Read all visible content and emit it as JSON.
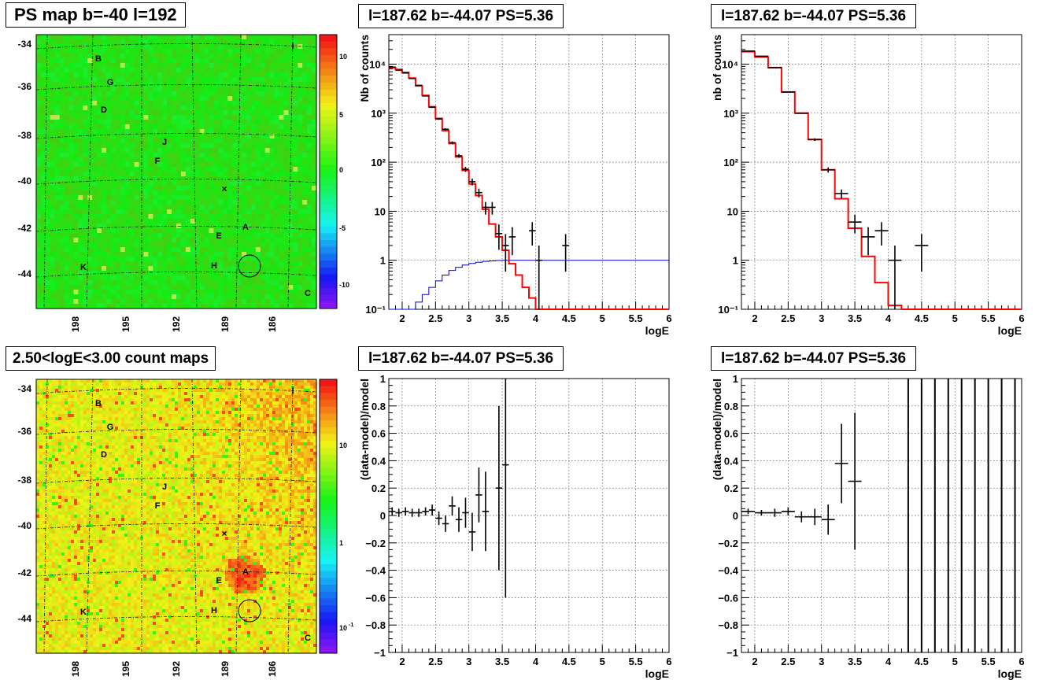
{
  "panels": {
    "top_left_title": "PS map b=-40 l=192",
    "bottom_left_title": "2.50<logE<3.00 count maps",
    "top_mid_title": "l=187.62 b=-44.07 PS=5.36",
    "top_right_title": "l=187.62 b=-44.07 PS=5.36",
    "bottom_mid_title": "l=187.62 b=-44.07 PS=5.36",
    "bottom_right_title": "l=187.62 b=-44.07 PS=5.36"
  },
  "maps": {
    "y_ticks": [
      "-34",
      "-36",
      "-38",
      "-40",
      "-42",
      "-44"
    ],
    "x_ticks": [
      "198",
      "195",
      "192",
      "189",
      "186"
    ],
    "sources": [
      "B",
      "G",
      "D",
      "J",
      "F",
      "E",
      "A",
      "H",
      "K",
      "C",
      "I"
    ],
    "ps_colorbar_ticks": [
      "10",
      "5",
      "0",
      "-5",
      "-10"
    ],
    "count_colorbar_ticks": [
      "10",
      "1",
      "10"
    ],
    "count_colorbar_exp": "-1"
  },
  "colors": {
    "model_line": "#ff0000",
    "exposure_line": "#0000cc",
    "data": "#000000",
    "ps_map_bg": "#3cf23c",
    "count_map_bg": "#bfe83a"
  },
  "chart_data": [
    {
      "type": "line",
      "id": "spectrum_left",
      "title": "l=187.62 b=-44.07 PS=5.36",
      "xlabel": "logE",
      "ylabel": "Nb of counts",
      "xlim": [
        1.8,
        6
      ],
      "ylim": [
        0.1,
        40000
      ],
      "log_y": true,
      "grid": true,
      "x_ticks": [
        2,
        2.5,
        3,
        3.5,
        4,
        4.5,
        5,
        5.5,
        6
      ],
      "x_tick_labels": [
        "2",
        "2.5",
        "3",
        "3.5",
        "4",
        "4.5",
        "5",
        "5.5",
        "6"
      ],
      "y_ticks": [
        0.1,
        1,
        10,
        100,
        1000,
        10000
      ],
      "y_tick_labels": [
        "10⁻¹",
        "1",
        "10",
        "10²",
        "10³",
        "10⁴"
      ],
      "model_edges": [
        1.8,
        1.9,
        2.0,
        2.1,
        2.2,
        2.3,
        2.4,
        2.5,
        2.6,
        2.7,
        2.8,
        2.9,
        3.0,
        3.1,
        3.2,
        3.3,
        3.4,
        3.5,
        3.6,
        3.7,
        3.8,
        3.9,
        4.0,
        4.1,
        6.0
      ],
      "model_values": [
        8500,
        7800,
        6800,
        5200,
        3600,
        2300,
        1350,
        780,
        440,
        240,
        128,
        68,
        36,
        21,
        11,
        5.5,
        3.0,
        1.6,
        0.85,
        0.5,
        0.28,
        0.17,
        0.1,
        0.07
      ],
      "exposure_edges": [
        1.8,
        2.1,
        2.2,
        2.3,
        2.4,
        2.5,
        2.6,
        2.7,
        2.8,
        2.9,
        3.0,
        3.1,
        3.2,
        3.3,
        3.4,
        3.5,
        6.0
      ],
      "exposure_values": [
        0.05,
        0.1,
        0.14,
        0.2,
        0.28,
        0.38,
        0.5,
        0.62,
        0.72,
        0.8,
        0.86,
        0.91,
        0.95,
        0.97,
        0.99,
        1.0
      ],
      "data_points": [
        {
          "x": 1.85,
          "y": 8700
        },
        {
          "x": 1.95,
          "y": 7500
        },
        {
          "x": 2.05,
          "y": 6600
        },
        {
          "x": 2.15,
          "y": 5100
        },
        {
          "x": 2.25,
          "y": 3700
        },
        {
          "x": 2.35,
          "y": 2250
        },
        {
          "x": 2.45,
          "y": 1320
        },
        {
          "x": 2.55,
          "y": 760
        },
        {
          "x": 2.65,
          "y": 470
        },
        {
          "x": 2.75,
          "y": 250
        },
        {
          "x": 2.85,
          "y": 135
        },
        {
          "x": 2.95,
          "y": 72
        },
        {
          "x": 3.05,
          "y": 40
        },
        {
          "x": 3.15,
          "y": 24
        },
        {
          "x": 3.25,
          "y": 12
        },
        {
          "x": 3.35,
          "y": 12
        },
        {
          "x": 3.45,
          "y": 3.5
        },
        {
          "x": 3.55,
          "y": 2
        },
        {
          "x": 3.65,
          "y": 3
        },
        {
          "x": 3.95,
          "y": 4
        },
        {
          "x": 4.05,
          "y": 1
        },
        {
          "x": 4.45,
          "y": 2
        }
      ]
    },
    {
      "type": "line",
      "id": "spectrum_right",
      "title": "l=187.62 b=-44.07 PS=5.36",
      "xlabel": "logE",
      "ylabel": "nb of counts",
      "xlim": [
        1.8,
        6
      ],
      "ylim": [
        0.1,
        40000
      ],
      "log_y": true,
      "grid": true,
      "x_ticks": [
        2,
        2.5,
        3,
        3.5,
        4,
        4.5,
        5,
        5.5,
        6
      ],
      "x_tick_labels": [
        "2",
        "2.5",
        "3",
        "3.5",
        "4",
        "4.5",
        "5",
        "5.5",
        "6"
      ],
      "y_ticks": [
        0.1,
        1,
        10,
        100,
        1000,
        10000
      ],
      "y_tick_labels": [
        "10⁻¹",
        "1",
        "10",
        "10²",
        "10³",
        "10⁴"
      ],
      "model_edges": [
        1.8,
        2.0,
        2.2,
        2.4,
        2.6,
        2.8,
        3.0,
        3.2,
        3.4,
        3.6,
        3.8,
        4.0,
        4.2,
        6.0
      ],
      "model_values": [
        18000,
        14000,
        8500,
        2700,
        1000,
        290,
        70,
        18,
        4.5,
        1.2,
        0.35,
        0.12,
        0.09
      ],
      "data_points": [
        {
          "x": 1.9,
          "y": 18500
        },
        {
          "x": 2.1,
          "y": 14500
        },
        {
          "x": 2.3,
          "y": 8500
        },
        {
          "x": 2.5,
          "y": 2700
        },
        {
          "x": 2.7,
          "y": 1000
        },
        {
          "x": 2.9,
          "y": 290
        },
        {
          "x": 3.1,
          "y": 70
        },
        {
          "x": 3.3,
          "y": 23
        },
        {
          "x": 3.5,
          "y": 6
        },
        {
          "x": 3.7,
          "y": 3
        },
        {
          "x": 3.9,
          "y": 4
        },
        {
          "x": 4.1,
          "y": 1
        },
        {
          "x": 4.5,
          "y": 2
        }
      ]
    },
    {
      "type": "scatter",
      "id": "residual_left",
      "title": "l=187.62 b=-44.07 PS=5.36",
      "xlabel": "logE",
      "ylabel": "(data-model)/model",
      "xlim": [
        1.8,
        6
      ],
      "ylim": [
        -1,
        1
      ],
      "grid": true,
      "x_ticks": [
        2,
        2.5,
        3,
        3.5,
        4,
        4.5,
        5,
        5.5,
        6
      ],
      "x_tick_labels": [
        "2",
        "2.5",
        "3",
        "3.5",
        "4",
        "4.5",
        "5",
        "5.5",
        "6"
      ],
      "y_ticks": [
        -1,
        -0.8,
        -0.6,
        -0.4,
        -0.2,
        0,
        0.2,
        0.4,
        0.6,
        0.8,
        1
      ],
      "y_tick_labels": [
        "−1",
        "−0.8",
        "−0.6",
        "−0.4",
        "−0.2",
        "0",
        "0.2",
        "0.4",
        "0.6",
        "0.8",
        "1"
      ],
      "data_points": [
        {
          "x": 1.85,
          "y": 0.03,
          "err": 0.03
        },
        {
          "x": 1.95,
          "y": 0.02,
          "err": 0.03
        },
        {
          "x": 2.05,
          "y": 0.03,
          "err": 0.03
        },
        {
          "x": 2.15,
          "y": 0.02,
          "err": 0.03
        },
        {
          "x": 2.25,
          "y": 0.02,
          "err": 0.03
        },
        {
          "x": 2.35,
          "y": 0.03,
          "err": 0.03
        },
        {
          "x": 2.45,
          "y": 0.04,
          "err": 0.04
        },
        {
          "x": 2.55,
          "y": -0.02,
          "err": 0.05
        },
        {
          "x": 2.65,
          "y": -0.06,
          "err": 0.06
        },
        {
          "x": 2.75,
          "y": 0.07,
          "err": 0.07
        },
        {
          "x": 2.85,
          "y": -0.03,
          "err": 0.09
        },
        {
          "x": 2.95,
          "y": 0.02,
          "err": 0.11
        },
        {
          "x": 3.05,
          "y": -0.12,
          "err": 0.14
        },
        {
          "x": 3.15,
          "y": 0.15,
          "err": 0.2
        },
        {
          "x": 3.25,
          "y": 0.03,
          "err": 0.29
        },
        {
          "x": 3.45,
          "y": 0.2,
          "err": 0.6
        },
        {
          "x": 3.55,
          "y": 0.37,
          "err": 0.97
        }
      ]
    },
    {
      "type": "scatter",
      "id": "residual_right",
      "title": "l=187.62 b=-44.07 PS=5.36",
      "xlabel": "logE",
      "ylabel": "(data-model)/model",
      "xlim": [
        1.8,
        6
      ],
      "ylim": [
        -1,
        1
      ],
      "grid": true,
      "x_ticks": [
        2,
        2.5,
        3,
        3.5,
        4,
        4.5,
        5,
        5.5,
        6
      ],
      "x_tick_labels": [
        "2",
        "2.5",
        "3",
        "3.5",
        "4",
        "4.5",
        "5",
        "5.5",
        "6"
      ],
      "y_ticks": [
        -1,
        -0.8,
        -0.6,
        -0.4,
        -0.2,
        0,
        0.2,
        0.4,
        0.6,
        0.8,
        1
      ],
      "y_tick_labels": [
        "−1",
        "−0.8",
        "−0.6",
        "−0.4",
        "−0.2",
        "0",
        "0.2",
        "0.4",
        "0.6",
        "0.8",
        "1"
      ],
      "data_points": [
        {
          "x": 1.9,
          "y": 0.03,
          "err": 0.02
        },
        {
          "x": 2.1,
          "y": 0.02,
          "err": 0.02
        },
        {
          "x": 2.3,
          "y": 0.02,
          "err": 0.03
        },
        {
          "x": 2.5,
          "y": 0.03,
          "err": 0.03
        },
        {
          "x": 2.7,
          "y": -0.01,
          "err": 0.04
        },
        {
          "x": 2.9,
          "y": -0.01,
          "err": 0.06
        },
        {
          "x": 3.1,
          "y": -0.03,
          "err": 0.11
        },
        {
          "x": 3.3,
          "y": 0.38,
          "err": 0.29
        },
        {
          "x": 3.5,
          "y": 0.25,
          "err": 0.5
        }
      ],
      "full_range_bars_x": [
        4.3,
        4.5,
        4.7,
        4.9,
        5.1,
        5.3,
        5.5,
        5.7,
        5.9
      ]
    }
  ]
}
